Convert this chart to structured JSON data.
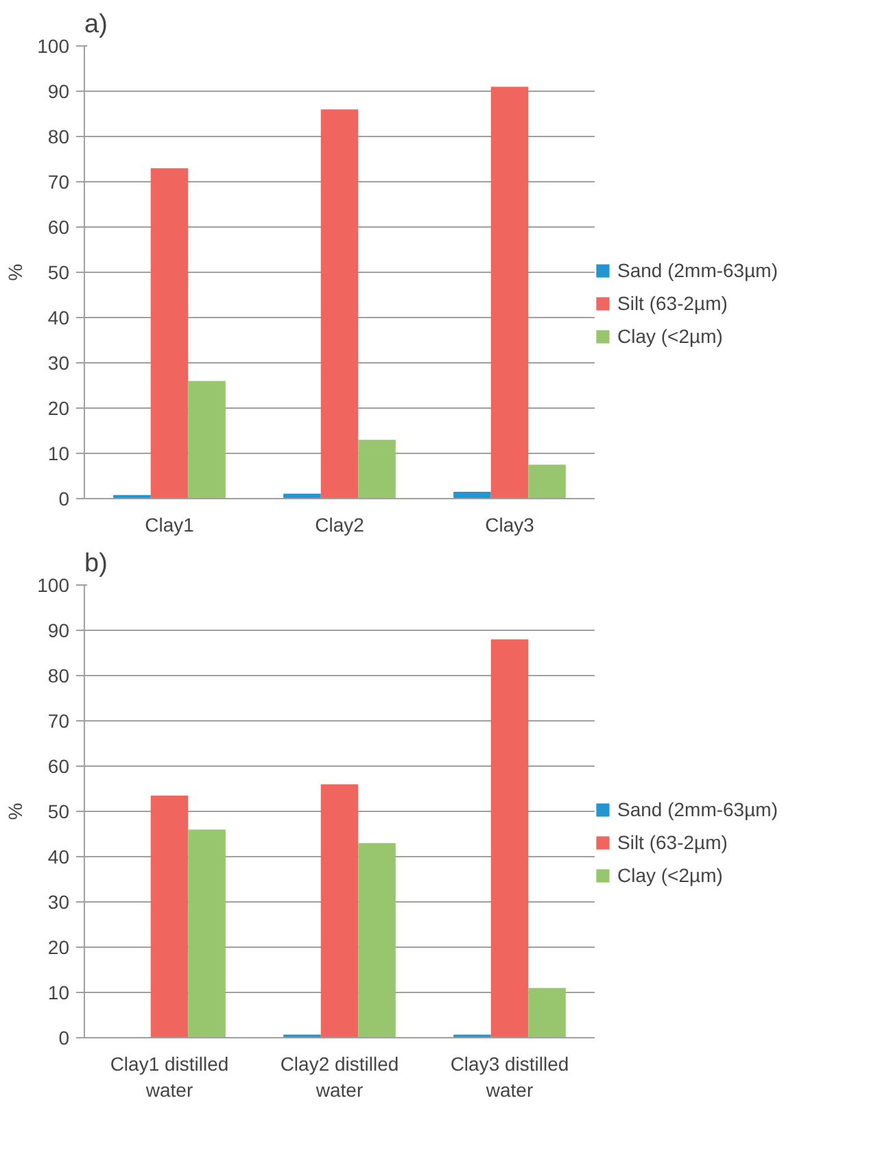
{
  "chart_data": [
    {
      "type": "bar",
      "title": "a)",
      "ylabel": "%",
      "categories": [
        "Clay1",
        "Clay2",
        "Clay3"
      ],
      "series": [
        {
          "name": "Sand (2mm-63µm)",
          "color": "#2196cf",
          "values": [
            0.8,
            1.1,
            1.5
          ]
        },
        {
          "name": "Silt (63-2µm)",
          "color": "#f0655d",
          "values": [
            73,
            86,
            91
          ]
        },
        {
          "name": "Clay (<2µm)",
          "color": "#97c66f",
          "values": [
            26,
            13,
            7.5
          ]
        }
      ],
      "ylim": [
        0,
        100
      ],
      "yticks": [
        0,
        10,
        20,
        30,
        40,
        50,
        60,
        70,
        80,
        90,
        100
      ],
      "grid": "y",
      "legend": "right"
    },
    {
      "type": "bar",
      "title": "b)",
      "ylabel": "%",
      "categories": [
        "Clay1 distilled water",
        "Clay2 distilled water",
        "Clay3 distilled water"
      ],
      "series": [
        {
          "name": "Sand (2mm-63µm)",
          "color": "#2196cf",
          "values": [
            0,
            0.7,
            0.7
          ]
        },
        {
          "name": "Silt (63-2µm)",
          "color": "#f0655d",
          "values": [
            53.5,
            56,
            88
          ]
        },
        {
          "name": "Clay (<2µm)",
          "color": "#97c66f",
          "values": [
            46,
            43,
            11
          ]
        }
      ],
      "ylim": [
        0,
        100
      ],
      "yticks": [
        0,
        10,
        20,
        30,
        40,
        50,
        60,
        70,
        80,
        90,
        100
      ],
      "grid": "y",
      "legend": "right"
    }
  ]
}
